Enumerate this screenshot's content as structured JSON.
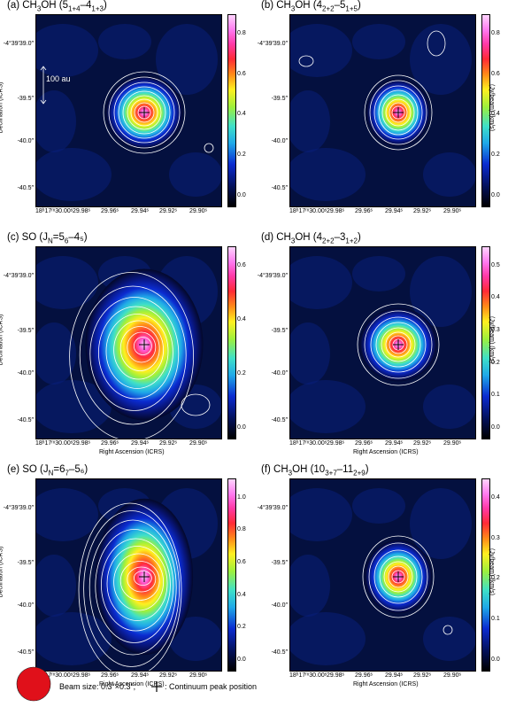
{
  "panels": [
    {
      "title_main": "(a) CH",
      "title_sub1": "3",
      "title_mid": "OH (5",
      "title_sub2": "1+4",
      "title_mid2": "–4",
      "title_sub3": "1+3",
      "title_end": ")",
      "cbar_ticks": [
        "0.8",
        "0.6",
        "0.4",
        "0.2",
        "0.0"
      ],
      "show_scale": true,
      "cbar_unit": ""
    },
    {
      "title_main": "(b) CH",
      "title_sub1": "3",
      "title_mid": "OH (4",
      "title_sub2": "2+2",
      "title_mid2": "–5",
      "title_sub3": "1+5",
      "title_end": ")",
      "cbar_ticks": [
        "0.8",
        "0.6",
        "0.4",
        "0.2",
        "0.0"
      ],
      "show_scale": false,
      "cbar_unit": "(Jy/beam)·(km/s)"
    },
    {
      "title_main": "(c) SO (",
      "title_sub1": "",
      "title_mid": "J",
      "title_sub2": "N",
      "title_mid2": "=5",
      "title_sub3": "6",
      "title_end": "–4₅)",
      "cbar_ticks": [
        "0.6",
        "0.4",
        "0.2",
        "0.0"
      ],
      "show_scale": false,
      "cbar_unit": ""
    },
    {
      "title_main": "(d) CH",
      "title_sub1": "3",
      "title_mid": "OH (4",
      "title_sub2": "2+2",
      "title_mid2": "–3",
      "title_sub3": "1+2",
      "title_end": ")",
      "cbar_ticks": [
        "0.5",
        "0.4",
        "0.3",
        "0.2",
        "0.1",
        "0.0"
      ],
      "show_scale": false,
      "cbar_unit": "(Jy/beam)·(km/s)"
    },
    {
      "title_main": "(e) SO (",
      "title_sub1": "",
      "title_mid": "J",
      "title_sub2": "N",
      "title_mid2": "=6",
      "title_sub3": "7",
      "title_end": "–5₆)",
      "cbar_ticks": [
        "1.0",
        "0.8",
        "0.6",
        "0.4",
        "0.2",
        "0.0"
      ],
      "show_scale": false,
      "cbar_unit": ""
    },
    {
      "title_main": "(f) CH",
      "title_sub1": "3",
      "title_mid": "OH (10",
      "title_sub2": "3+7",
      "title_mid2": "–11",
      "title_sub3": "2+9",
      "title_end": ")",
      "cbar_ticks": [
        "0.4",
        "0.3",
        "0.2",
        "0.1",
        "0.0"
      ],
      "show_scale": false,
      "cbar_unit": "(Jy/beam)·(km/s)"
    }
  ],
  "axes": {
    "yticks": [
      "-4°39′39.0″",
      "-39.5″",
      "-40.0″",
      "-40.5″"
    ],
    "ylabel": "Declination (ICRS)",
    "xticks": [
      "18ʰ17ᵐ30.00ˢ",
      "29.98ˢ",
      "29.96ˢ",
      "29.94ˢ",
      "29.92ˢ",
      "29.90ˢ"
    ],
    "xlabel": "Right Ascension (ICRS)"
  },
  "scale_bar": "100 au",
  "legend": {
    "beam_text": "Beam size: 0.3″×0.3″,",
    "cross_text": ": Continuum peak position"
  },
  "colors": {
    "map_bg": "#03082a",
    "contour": "#ffffff",
    "beam": "#e0101a"
  }
}
